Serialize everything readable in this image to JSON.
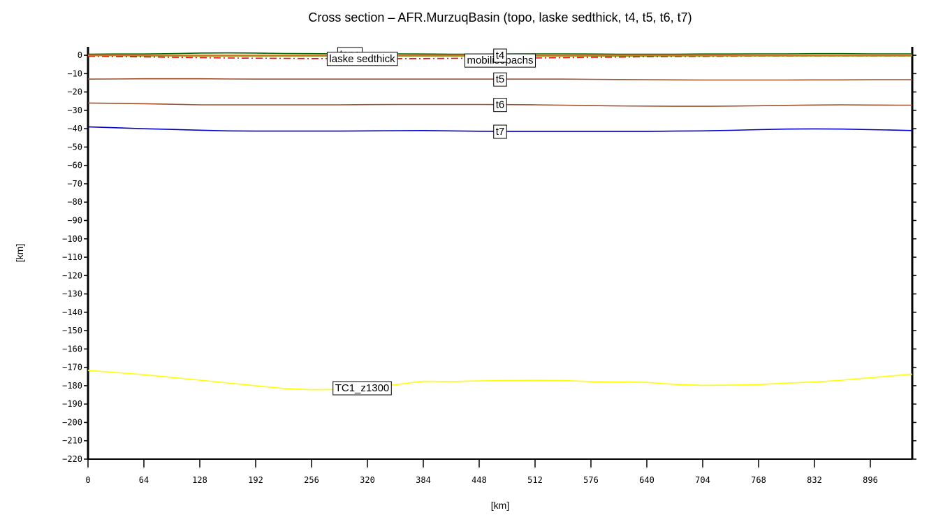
{
  "chart_data": {
    "type": "line",
    "title": "Cross section – AFR.MurzuqBasin (topo, laske sedthick, t4, t5, t6, t7)",
    "xlabel": "[km]",
    "ylabel": "[km]",
    "x": [
      0,
      32,
      64,
      96,
      128,
      160,
      192,
      224,
      256,
      288,
      320,
      352,
      384,
      416,
      448,
      480,
      512,
      544,
      576,
      608,
      640,
      672,
      704,
      736,
      768,
      800,
      832,
      864,
      896,
      928,
      944
    ],
    "xlim": [
      0,
      944
    ],
    "ylim": [
      -220,
      4.6
    ],
    "xticks": [
      0,
      64,
      128,
      192,
      256,
      320,
      384,
      448,
      512,
      576,
      640,
      704,
      768,
      832,
      896
    ],
    "yticks": [
      0,
      {
        "value": -10,
        "label": "−10"
      },
      {
        "value": -20,
        "label": "−20"
      },
      {
        "value": -30,
        "label": "−30"
      },
      {
        "value": -40,
        "label": "−40"
      },
      {
        "value": -50,
        "label": "−50"
      },
      {
        "value": -60,
        "label": "−60"
      },
      {
        "value": -70,
        "label": "−70"
      },
      {
        "value": -80,
        "label": "−80"
      },
      {
        "value": -90,
        "label": "−90"
      },
      {
        "value": -100,
        "label": "−100"
      },
      {
        "value": -110,
        "label": "−110"
      },
      {
        "value": -120,
        "label": "−120"
      },
      {
        "value": -130,
        "label": "−130"
      },
      {
        "value": -140,
        "label": "−140"
      },
      {
        "value": -150,
        "label": "−150"
      },
      {
        "value": -160,
        "label": "−160"
      },
      {
        "value": -170,
        "label": "−170"
      },
      {
        "value": -180,
        "label": "−180"
      },
      {
        "value": -190,
        "label": "−190"
      },
      {
        "value": -200,
        "label": "−200"
      },
      {
        "value": -210,
        "label": "−210"
      },
      {
        "value": -220,
        "label": "−220"
      }
    ],
    "series": [
      {
        "name": "topo",
        "color": "#006400",
        "dash": false,
        "values": [
          0.6,
          0.7,
          0.7,
          0.9,
          1.2,
          1.3,
          1.2,
          1.0,
          0.9,
          0.8,
          0.8,
          0.8,
          0.7,
          0.6,
          0.6,
          0.7,
          0.8,
          0.8,
          0.7,
          0.6,
          0.6,
          0.6,
          0.7,
          0.7,
          0.8,
          0.8,
          0.9,
          0.9,
          0.8,
          0.8,
          0.8
        ]
      },
      {
        "name": "laske sedthick",
        "color": "#ff0000",
        "dash": true,
        "values": [
          -0.5,
          -0.7,
          -0.9,
          -1.1,
          -1.3,
          -1.5,
          -1.6,
          -1.7,
          -1.8,
          -1.8,
          -1.8,
          -1.8,
          -1.8,
          -1.7,
          -1.6,
          -1.6,
          -1.5,
          -1.3,
          -1.1,
          -1.0,
          -0.8,
          -0.7,
          -0.6,
          -0.5,
          -0.4,
          -0.4,
          -0.3,
          -0.3,
          -0.3,
          -0.3,
          -0.3
        ]
      },
      {
        "name": "mobilisopachs",
        "color": "#808000",
        "dash": false,
        "values": [
          -0.2,
          -0.2,
          -0.3,
          -0.3,
          -0.4,
          -0.4,
          -0.4,
          -0.4,
          -0.4,
          -0.4,
          -0.4,
          -0.4,
          -0.4,
          -0.4,
          -0.4,
          -0.4,
          -0.4,
          -0.4,
          -0.4,
          -0.4,
          -0.4,
          -0.3,
          -0.3,
          -0.3,
          -0.3,
          -0.3,
          -0.3,
          -0.3,
          -0.3,
          -0.3,
          -0.3
        ]
      },
      {
        "name": "t4",
        "color": "#e07020",
        "dash": false,
        "values": [
          0,
          0,
          0,
          0,
          0,
          0,
          0,
          0,
          0,
          0,
          0,
          0,
          0,
          0,
          0,
          0,
          0,
          0,
          0,
          0,
          0,
          0,
          0,
          0,
          0,
          0,
          0,
          0,
          0,
          0,
          0
        ]
      },
      {
        "name": "t5",
        "color": "#a0522d",
        "dash": false,
        "values": [
          -13,
          -12.9,
          -12.8,
          -12.8,
          -12.8,
          -12.9,
          -13,
          -13,
          -13,
          -13,
          -13,
          -13,
          -13,
          -13,
          -13,
          -13,
          -13,
          -13,
          -13.1,
          -13.2,
          -13.3,
          -13.4,
          -13.5,
          -13.5,
          -13.5,
          -13.5,
          -13.4,
          -13.4,
          -13.3,
          -13.3,
          -13.3
        ]
      },
      {
        "name": "t6",
        "color": "#a0522d",
        "dash": false,
        "values": [
          -26,
          -26.2,
          -26.4,
          -26.7,
          -27,
          -27,
          -27,
          -27,
          -27,
          -27,
          -26.9,
          -26.8,
          -26.8,
          -26.8,
          -26.8,
          -26.9,
          -27,
          -27.2,
          -27.4,
          -27.6,
          -27.7,
          -27.8,
          -27.8,
          -27.7,
          -27.5,
          -27.3,
          -27.1,
          -27,
          -27.1,
          -27.2,
          -27.2
        ]
      },
      {
        "name": "t7",
        "color": "#0000cc",
        "dash": false,
        "values": [
          -39,
          -39.5,
          -40,
          -40.4,
          -40.8,
          -41.2,
          -41.3,
          -41.3,
          -41.3,
          -41.3,
          -41.2,
          -41.1,
          -41,
          -41.2,
          -41.4,
          -41.5,
          -41.5,
          -41.5,
          -41.5,
          -41.5,
          -41.5,
          -41.3,
          -41.2,
          -40.9,
          -40.5,
          -40.2,
          -40.1,
          -40.2,
          -40.5,
          -40.8,
          -41
        ]
      },
      {
        "name": "TC1_z1300",
        "color": "#ffff00",
        "dash": false,
        "values": [
          -171.7,
          -172.8,
          -174,
          -175.5,
          -177,
          -178.5,
          -180,
          -181.5,
          -182.2,
          -182,
          -181,
          -179.5,
          -177.6,
          -177.7,
          -177.4,
          -177.2,
          -177.1,
          -177.2,
          -177.8,
          -178,
          -178.2,
          -179.3,
          -179.8,
          -179.7,
          -179.4,
          -178.6,
          -178,
          -177,
          -175.6,
          -174.4,
          -173.7
        ]
      }
    ]
  }
}
